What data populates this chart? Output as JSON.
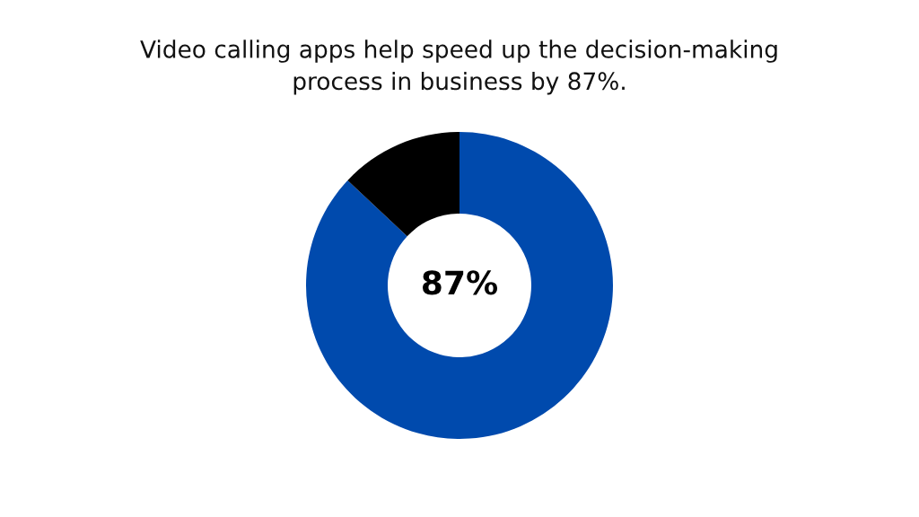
{
  "chart_data": {
    "type": "donut",
    "title": "Video calling apps help speed up the decision-making\nprocess in business by 87%.",
    "categories": [
      null,
      null
    ],
    "values": [
      87,
      13
    ],
    "colors": [
      "#004aad",
      "#000000"
    ],
    "value_labels": [
      "87%",
      null
    ],
    "legend": false
  }
}
